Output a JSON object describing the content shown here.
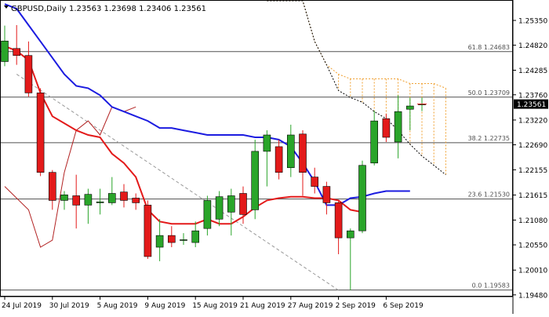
{
  "header": {
    "symbol": "GBPUSD,Daily",
    "ohlc": "1.23563 1.23698 1.23406 1.23561"
  },
  "colors": {
    "bull": "#2aa52a",
    "bear": "#e31a1a",
    "kijun": "#e31a1a",
    "tenkan": "#1c1ce0",
    "chikou": "#b22222",
    "cloud": "#f0a030",
    "fib": "#505050",
    "trend": "#999999",
    "price_tag": "#000000"
  },
  "chart_data": {
    "type": "candlestick",
    "ylim": [
      1.1946,
      1.2577
    ],
    "y_ticks": [
      1.2535,
      1.2482,
      1.24285,
      1.2376,
      1.2322,
      1.2269,
      1.22155,
      1.21615,
      1.2108,
      1.2055,
      1.2001,
      1.1948
    ],
    "x_ticks": [
      {
        "label": "24 Jul 2019",
        "idx": 0
      },
      {
        "label": "30 Jul 2019",
        "idx": 4
      },
      {
        "label": "5 Aug 2019",
        "idx": 8
      },
      {
        "label": "9 Aug 2019",
        "idx": 12
      },
      {
        "label": "15 Aug 2019",
        "idx": 16
      },
      {
        "label": "21 Aug 2019",
        "idx": 20
      },
      {
        "label": "27 Aug 2019",
        "idx": 24
      },
      {
        "label": "2 Sep 2019",
        "idx": 28
      },
      {
        "label": "6 Sep 2019",
        "idx": 32
      }
    ],
    "candles": [
      {
        "o": 1.2447,
        "h": 1.2524,
        "l": 1.2437,
        "c": 1.2491
      },
      {
        "o": 1.2475,
        "h": 1.2525,
        "l": 1.244,
        "c": 1.246
      },
      {
        "o": 1.246,
        "h": 1.249,
        "l": 1.2372,
        "c": 1.238
      },
      {
        "o": 1.238,
        "h": 1.239,
        "l": 1.2202,
        "c": 1.221
      },
      {
        "o": 1.221,
        "h": 1.2215,
        "l": 1.213,
        "c": 1.215
      },
      {
        "o": 1.215,
        "h": 1.217,
        "l": 1.213,
        "c": 1.2162
      },
      {
        "o": 1.216,
        "h": 1.2205,
        "l": 1.209,
        "c": 1.214
      },
      {
        "o": 1.214,
        "h": 1.2175,
        "l": 1.21,
        "c": 1.2163
      },
      {
        "o": 1.2145,
        "h": 1.2175,
        "l": 1.212,
        "c": 1.2147
      },
      {
        "o": 1.2145,
        "h": 1.22,
        "l": 1.214,
        "c": 1.2165
      },
      {
        "o": 1.2168,
        "h": 1.2185,
        "l": 1.2135,
        "c": 1.215
      },
      {
        "o": 1.2155,
        "h": 1.2165,
        "l": 1.213,
        "c": 1.2145
      },
      {
        "o": 1.214,
        "h": 1.215,
        "l": 1.2025,
        "c": 1.203
      },
      {
        "o": 1.205,
        "h": 1.211,
        "l": 1.202,
        "c": 1.2075
      },
      {
        "o": 1.2075,
        "h": 1.2095,
        "l": 1.205,
        "c": 1.206
      },
      {
        "o": 1.2065,
        "h": 1.208,
        "l": 1.2055,
        "c": 1.2066
      },
      {
        "o": 1.206,
        "h": 1.2105,
        "l": 1.205,
        "c": 1.2085
      },
      {
        "o": 1.209,
        "h": 1.216,
        "l": 1.2075,
        "c": 1.215
      },
      {
        "o": 1.211,
        "h": 1.217,
        "l": 1.2095,
        "c": 1.2158
      },
      {
        "o": 1.2125,
        "h": 1.2175,
        "l": 1.2075,
        "c": 1.216
      },
      {
        "o": 1.2165,
        "h": 1.218,
        "l": 1.21,
        "c": 1.212
      },
      {
        "o": 1.213,
        "h": 1.228,
        "l": 1.211,
        "c": 1.2255
      },
      {
        "o": 1.2255,
        "h": 1.23,
        "l": 1.218,
        "c": 1.229
      },
      {
        "o": 1.2265,
        "h": 1.228,
        "l": 1.2195,
        "c": 1.221
      },
      {
        "o": 1.222,
        "h": 1.2312,
        "l": 1.22,
        "c": 1.229
      },
      {
        "o": 1.2292,
        "h": 1.23,
        "l": 1.216,
        "c": 1.221
      },
      {
        "o": 1.22,
        "h": 1.222,
        "l": 1.2165,
        "c": 1.218
      },
      {
        "o": 1.218,
        "h": 1.219,
        "l": 1.212,
        "c": 1.2145
      },
      {
        "o": 1.2145,
        "h": 1.215,
        "l": 1.2035,
        "c": 1.207
      },
      {
        "o": 1.207,
        "h": 1.209,
        "l": 1.1958,
        "c": 1.2085
      },
      {
        "o": 1.2085,
        "h": 1.2235,
        "l": 1.208,
        "c": 1.2225
      },
      {
        "o": 1.223,
        "h": 1.2342,
        "l": 1.2225,
        "c": 1.232
      },
      {
        "o": 1.2325,
        "h": 1.2335,
        "l": 1.2275,
        "c": 1.2285
      },
      {
        "o": 1.2275,
        "h": 1.2375,
        "l": 1.224,
        "c": 1.234
      },
      {
        "o": 1.2345,
        "h": 1.237,
        "l": 1.23,
        "c": 1.2352
      },
      {
        "o": 1.2356,
        "h": 1.237,
        "l": 1.2341,
        "c": 1.2356
      }
    ],
    "kijun": [
      1.248,
      1.247,
      1.245,
      1.238,
      1.233,
      1.2315,
      1.23,
      1.229,
      1.2285,
      1.225,
      1.223,
      1.22,
      1.213,
      1.2105,
      1.21,
      1.21,
      1.21,
      1.211,
      1.21,
      1.21,
      1.2115,
      1.2135,
      1.215,
      1.2155,
      1.2158,
      1.2158,
      1.2155,
      1.2155,
      1.215,
      1.213,
      1.2125
    ],
    "tenkan": [
      1.257,
      1.256,
      1.2525,
      1.249,
      1.2455,
      1.242,
      1.2395,
      1.239,
      1.2375,
      1.235,
      1.234,
      1.233,
      1.232,
      1.2305,
      1.2305,
      1.23,
      1.2295,
      1.229,
      1.229,
      1.229,
      1.229,
      1.2285,
      1.2285,
      1.228,
      1.2265,
      1.223,
      1.219,
      1.214,
      1.214,
      1.2155,
      1.2158,
      1.2165,
      1.217,
      1.217,
      1.217
    ],
    "chikou": [
      1.218,
      1.2155,
      1.213,
      1.205,
      1.2065,
      1.221,
      1.23,
      1.232,
      1.229,
      1.235,
      1.234,
      1.235
    ],
    "cloud": {
      "start_idx": 22,
      "upper": [
        1.2577,
        1.2577,
        1.2577,
        1.2577,
        1.249,
        1.244,
        1.242,
        1.241,
        1.241,
        1.241,
        1.241,
        1.241,
        1.24,
        1.24,
        1.24,
        1.239
      ],
      "lower": [
        1.2577,
        1.2577,
        1.2577,
        1.2577,
        1.249,
        1.244,
        1.2385,
        1.237,
        1.236,
        1.234,
        1.2325,
        1.23,
        1.227,
        1.2245,
        1.2225,
        1.2205
      ]
    },
    "trendline": {
      "from": {
        "idx": 1,
        "y": 1.242
      },
      "to": {
        "idx": 28,
        "y": 1.1958
      }
    },
    "fib_levels": [
      {
        "label": "61.8 1.24683",
        "value": 1.24683
      },
      {
        "label": "50.0 1.23709",
        "value": 1.23709
      },
      {
        "label": "38.2 1.22735",
        "value": 1.22735
      },
      {
        "label": "23.6 1.21530",
        "value": 1.2153
      },
      {
        "label": "0.0 1.19583",
        "value": 1.19583
      }
    ],
    "current_price": {
      "label": "1.23561",
      "value": 1.23561
    }
  }
}
